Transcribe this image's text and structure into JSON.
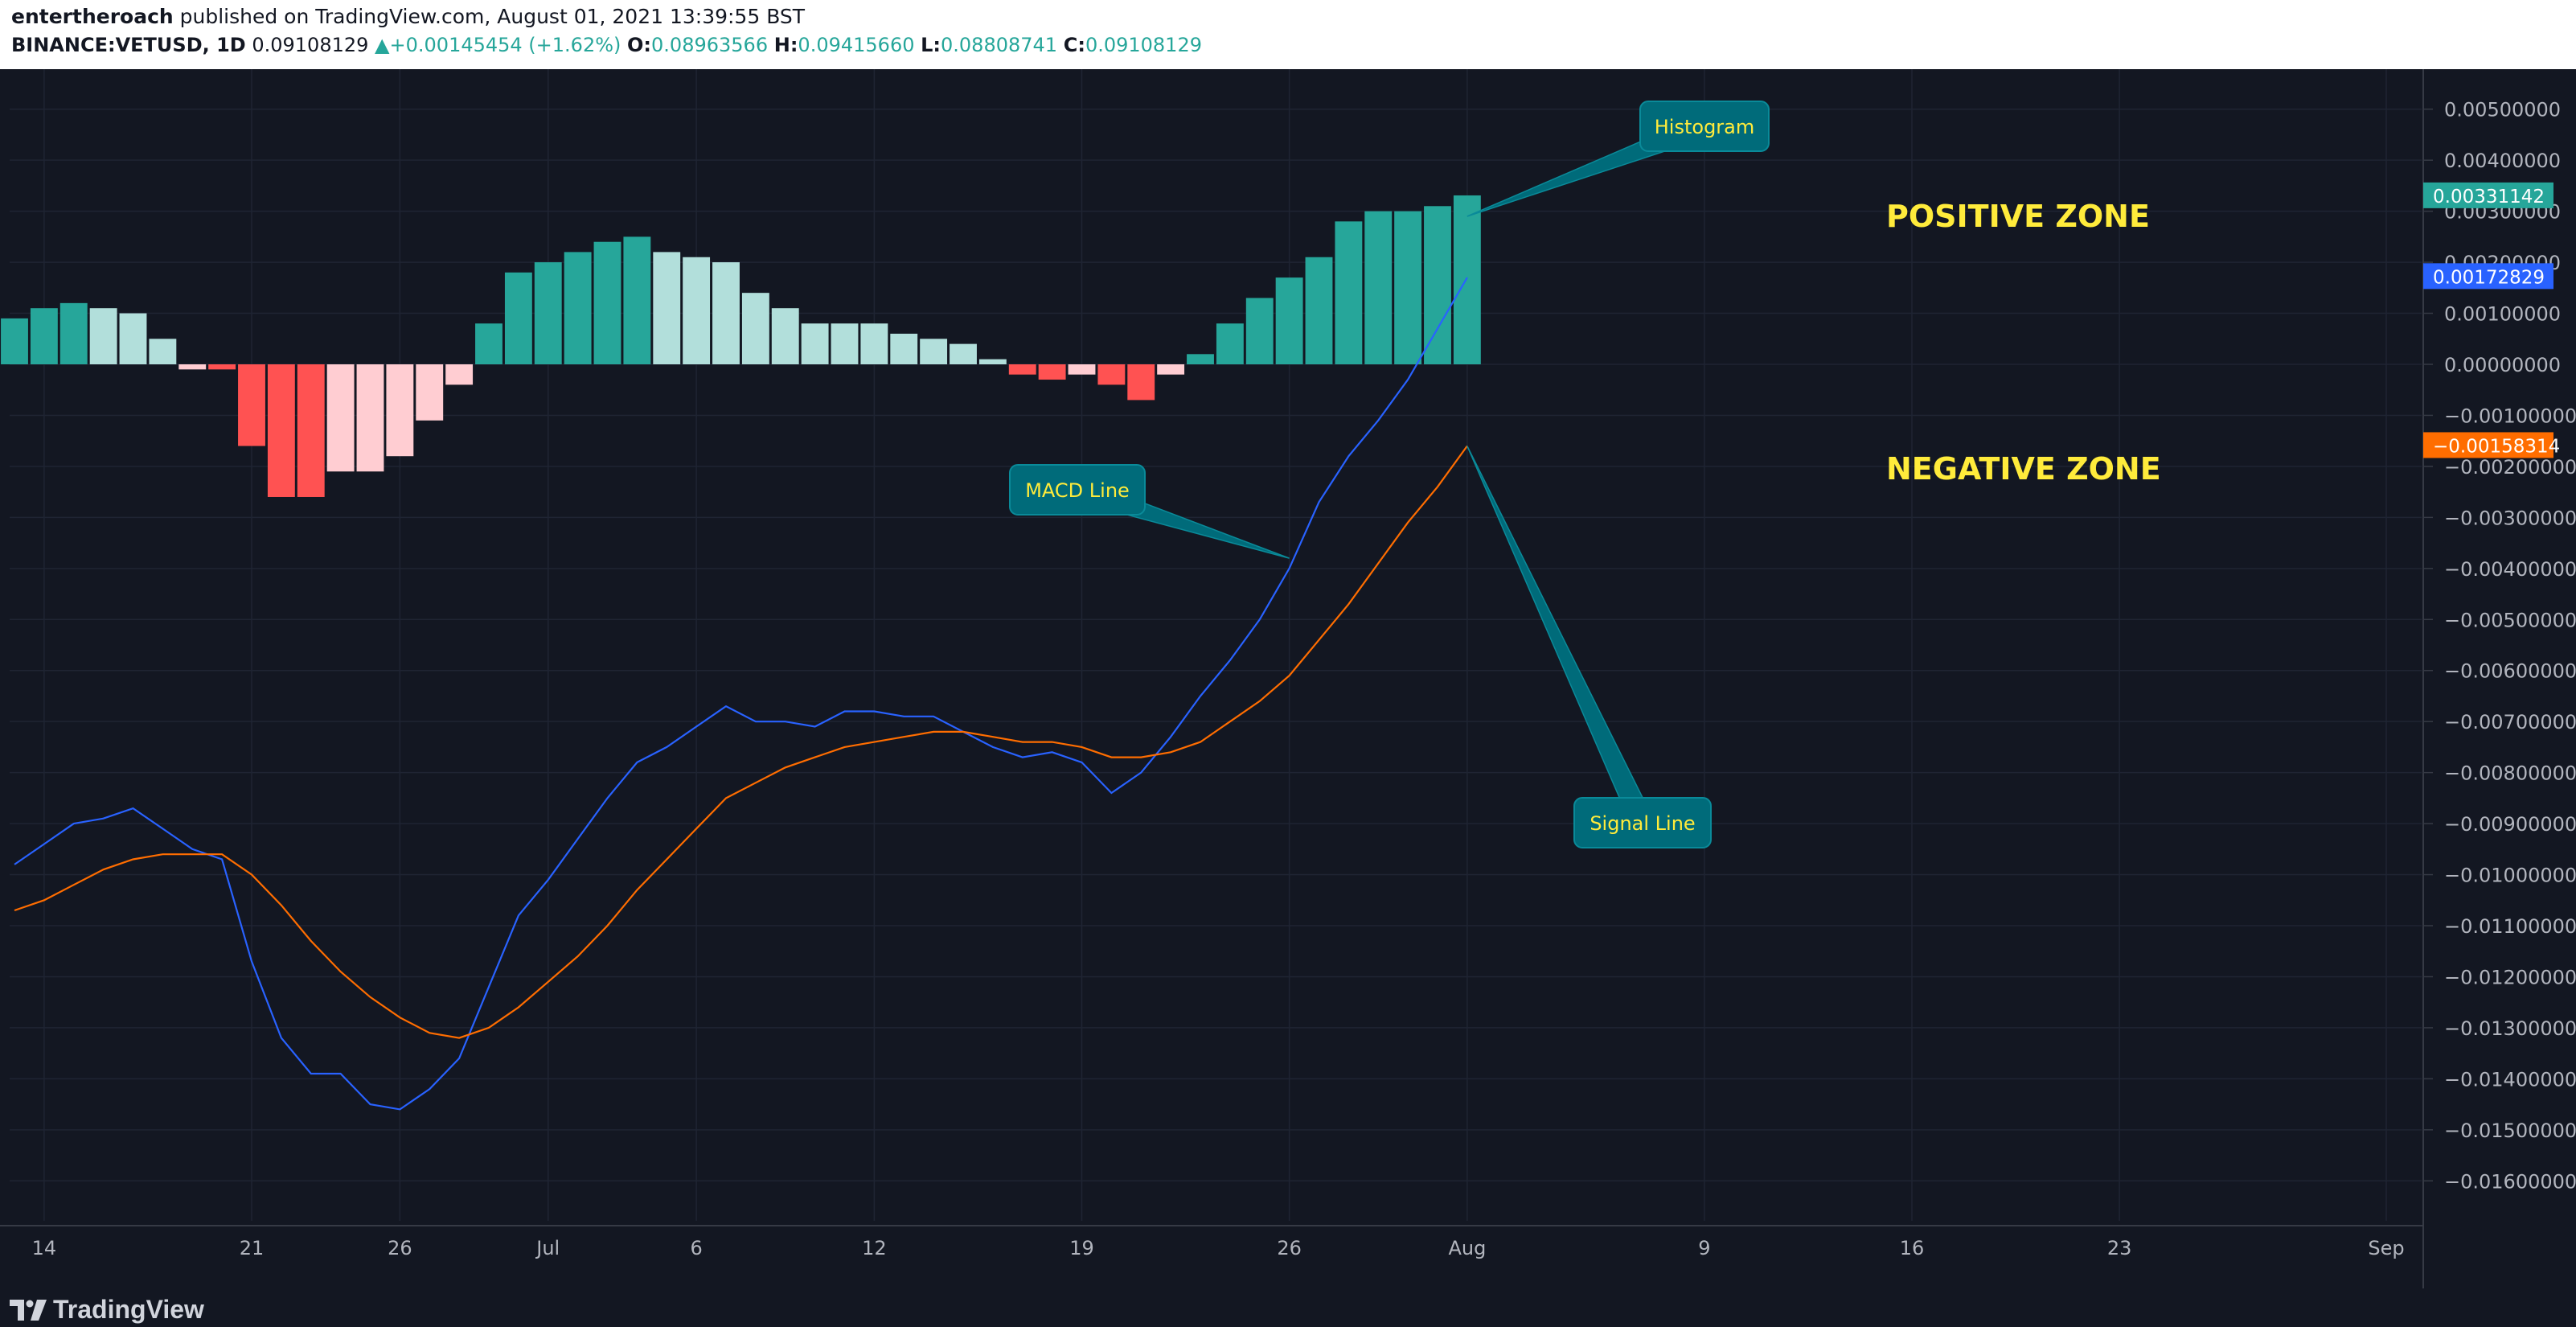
{
  "header": {
    "author": "entertheroach",
    "published": "published on TradingView.com, August 01, 2021 13:39:55 BST",
    "symbol": "BINANCE:VETUSD, 1D",
    "last": "0.09108129",
    "change_arrow": "▲",
    "change": "+0.00145454 (+1.62%)",
    "o_label": "O:",
    "o": "0.08963566",
    "h_label": "H:",
    "h": "0.09415660",
    "l_label": "L:",
    "l": "0.08808741",
    "c_label": "C:",
    "c": "0.09108129"
  },
  "footer": {
    "brand": "TradingView",
    "logo_icon": "tradingview-logo-icon"
  },
  "colors": {
    "background": "#131722",
    "grid": "#1f2433",
    "axis_text": "#b2b5be",
    "macd": "#2962ff",
    "signal": "#ff6d00",
    "hist_pos_strong": "#26a69a",
    "hist_pos_weak": "#b2dfdb",
    "hist_neg_strong": "#ff5252",
    "hist_neg_weak": "#ffcdd2",
    "annotation_bg": "#006b7a",
    "annotation_text": "#ffeb3b",
    "zone_text": "#ffeb3b"
  },
  "chart_data": {
    "type": "line",
    "indicator": "MACD",
    "y_axis_side": "right",
    "ylim": [
      -0.0165,
      0.0055
    ],
    "y_ticks": [
      0.005,
      0.004,
      0.003,
      0.002,
      0.001,
      0.0,
      -0.001,
      -0.002,
      -0.003,
      -0.004,
      -0.005,
      -0.006,
      -0.007,
      -0.008,
      -0.009,
      -0.01,
      -0.011,
      -0.012,
      -0.013,
      -0.014,
      -0.015,
      -0.016
    ],
    "y_tick_labels": [
      "0.00500000",
      "0.00400000",
      "0.00300000",
      "0.00200000",
      "0.00100000",
      "0.00000000",
      "−0.00100000",
      "−0.00200000",
      "−0.00300000",
      "−0.00400000",
      "−0.00500000",
      "−0.00600000",
      "−0.00700000",
      "−0.00800000",
      "−0.00900000",
      "−0.01000000",
      "−0.01100000",
      "−0.01200000",
      "−0.01300000",
      "−0.01400000",
      "−0.01500000",
      "−0.01600000"
    ],
    "x_tick_labels": [
      "14",
      "21",
      "26",
      "Jul",
      "6",
      "12",
      "19",
      "26",
      "Aug",
      "9",
      "16",
      "23",
      "Sep"
    ],
    "x_tick_dates": [
      "2021-06-14",
      "2021-06-21",
      "2021-06-26",
      "2021-07-01",
      "2021-07-06",
      "2021-07-12",
      "2021-07-19",
      "2021-07-26",
      "2021-08-01",
      "2021-08-09",
      "2021-08-16",
      "2021-08-23",
      "2021-09-01"
    ],
    "x_range": [
      "2021-06-13",
      "2021-09-01"
    ],
    "grid": true,
    "dates": [
      "2021-06-13",
      "2021-06-14",
      "2021-06-15",
      "2021-06-16",
      "2021-06-17",
      "2021-06-18",
      "2021-06-19",
      "2021-06-20",
      "2021-06-21",
      "2021-06-22",
      "2021-06-23",
      "2021-06-24",
      "2021-06-25",
      "2021-06-26",
      "2021-06-27",
      "2021-06-28",
      "2021-06-29",
      "2021-06-30",
      "2021-07-01",
      "2021-07-02",
      "2021-07-03",
      "2021-07-04",
      "2021-07-05",
      "2021-07-06",
      "2021-07-07",
      "2021-07-08",
      "2021-07-09",
      "2021-07-10",
      "2021-07-11",
      "2021-07-12",
      "2021-07-13",
      "2021-07-14",
      "2021-07-15",
      "2021-07-16",
      "2021-07-17",
      "2021-07-18",
      "2021-07-19",
      "2021-07-20",
      "2021-07-21",
      "2021-07-22",
      "2021-07-23",
      "2021-07-24",
      "2021-07-25",
      "2021-07-26",
      "2021-07-27",
      "2021-07-28",
      "2021-07-29",
      "2021-07-30",
      "2021-07-31",
      "2021-08-01"
    ],
    "series": [
      {
        "name": "MACD Line",
        "color": "#2962ff",
        "values": [
          -0.0098,
          -0.0094,
          -0.009,
          -0.0089,
          -0.0087,
          -0.0091,
          -0.0095,
          -0.0097,
          -0.0117,
          -0.0132,
          -0.0139,
          -0.0139,
          -0.0145,
          -0.0146,
          -0.0142,
          -0.0136,
          -0.0122,
          -0.0108,
          -0.0101,
          -0.0093,
          -0.0085,
          -0.0078,
          -0.0075,
          -0.0071,
          -0.0067,
          -0.007,
          -0.007,
          -0.0071,
          -0.0068,
          -0.0068,
          -0.0069,
          -0.0069,
          -0.0072,
          -0.0075,
          -0.0077,
          -0.0076,
          -0.0078,
          -0.0084,
          -0.008,
          -0.0073,
          -0.0065,
          -0.0058,
          -0.005,
          -0.004,
          -0.0027,
          -0.0018,
          -0.0011,
          -0.0003,
          0.0007,
          0.0017
        ]
      },
      {
        "name": "Signal Line",
        "color": "#ff6d00",
        "values": [
          -0.0107,
          -0.0105,
          -0.0102,
          -0.0099,
          -0.0097,
          -0.0096,
          -0.0096,
          -0.0096,
          -0.01,
          -0.0106,
          -0.0113,
          -0.0119,
          -0.0124,
          -0.0128,
          -0.0131,
          -0.0132,
          -0.013,
          -0.0126,
          -0.0121,
          -0.0116,
          -0.011,
          -0.0103,
          -0.0097,
          -0.0091,
          -0.0085,
          -0.0082,
          -0.0079,
          -0.0077,
          -0.0075,
          -0.0074,
          -0.0073,
          -0.0072,
          -0.0072,
          -0.0073,
          -0.0074,
          -0.0074,
          -0.0075,
          -0.0077,
          -0.0077,
          -0.0076,
          -0.0074,
          -0.007,
          -0.0066,
          -0.0061,
          -0.0054,
          -0.0047,
          -0.0039,
          -0.0031,
          -0.0024,
          -0.0016
        ]
      },
      {
        "name": "Histogram",
        "type": "bar",
        "values": [
          0.0009,
          0.0011,
          0.0012,
          0.0011,
          0.001,
          0.0005,
          -0.0001,
          -0.0001,
          -0.0016,
          -0.0026,
          -0.0026,
          -0.0021,
          -0.0021,
          -0.0018,
          -0.0011,
          -0.0004,
          0.0008,
          0.0018,
          0.002,
          0.0022,
          0.0024,
          0.0025,
          0.0022,
          0.0021,
          0.002,
          0.0014,
          0.0011,
          0.0008,
          0.0008,
          0.0008,
          0.0006,
          0.0005,
          0.0004,
          0.0001,
          -0.0002,
          -0.0003,
          -0.0002,
          -0.0004,
          -0.0007,
          -0.0002,
          0.0002,
          0.0008,
          0.0013,
          0.0017,
          0.0021,
          0.0028,
          0.003,
          0.003,
          0.0031,
          0.00331
        ],
        "color_state": [
          "ps",
          "ps",
          "ps",
          "pw",
          "pw",
          "pw",
          "nw",
          "ns",
          "ns",
          "ns",
          "ns",
          "nw",
          "nw",
          "nw",
          "nw",
          "nw",
          "ps",
          "ps",
          "ps",
          "ps",
          "ps",
          "ps",
          "pw",
          "pw",
          "pw",
          "pw",
          "pw",
          "pw",
          "pw",
          "pw",
          "pw",
          "pw",
          "pw",
          "pw",
          "ns",
          "ns",
          "nw",
          "ns",
          "ns",
          "nw",
          "ps",
          "ps",
          "ps",
          "ps",
          "ps",
          "ps",
          "ps",
          "ps",
          "ps",
          "ps"
        ]
      }
    ],
    "price_labels": [
      {
        "text": "0.00331142",
        "value": 0.00331142,
        "color": "#26a69a"
      },
      {
        "text": "0.00172829",
        "value": 0.00172829,
        "color": "#2962ff"
      },
      {
        "text": "−0.00158314",
        "value": -0.00158314,
        "color": "#ff6d00"
      }
    ],
    "annotations": [
      {
        "text": "Histogram",
        "anchor_date": "2021-08-01",
        "anchor_value": 0.0029
      },
      {
        "text": "MACD Line",
        "anchor_date": "2021-07-26",
        "anchor_value": -0.0038
      },
      {
        "text": "Signal Line",
        "anchor_date": "2021-08-01",
        "anchor_value": -0.0016
      }
    ],
    "zones": [
      {
        "text": "POSITIVE ZONE"
      },
      {
        "text": "NEGATIVE ZONE"
      }
    ]
  }
}
